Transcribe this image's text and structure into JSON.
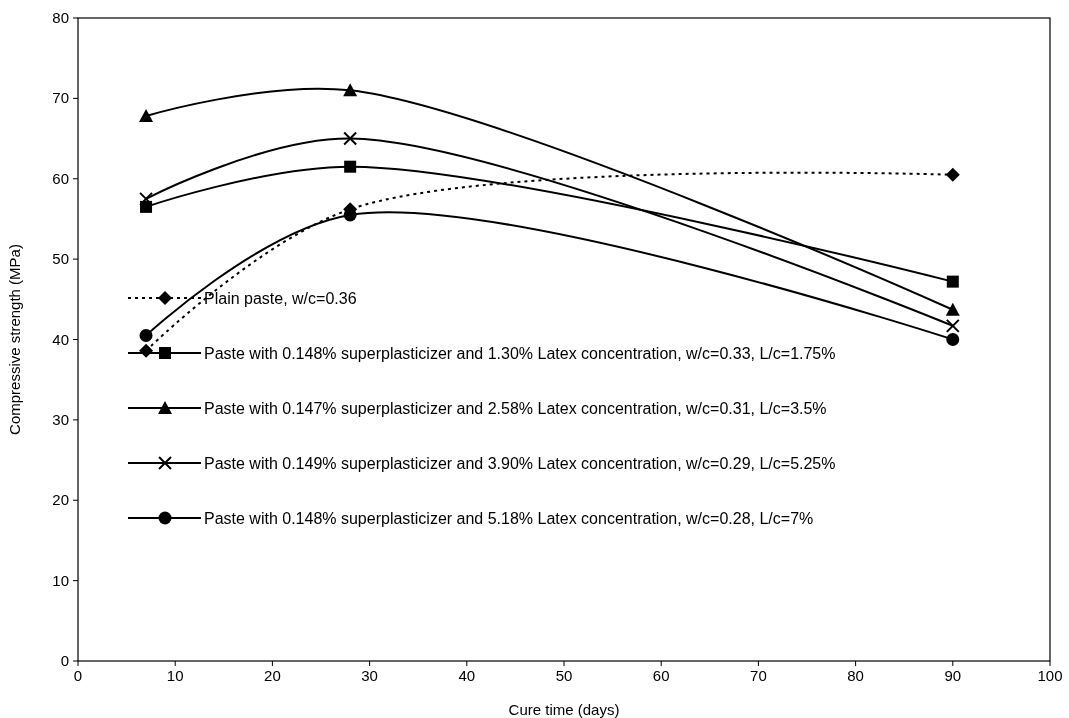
{
  "chart_data": {
    "type": "line",
    "xlabel": "Cure time (days)",
    "ylabel": "Compressive strength (MPa)",
    "x": [
      7,
      28,
      90
    ],
    "xlim": [
      0,
      100
    ],
    "xticks": [
      0,
      10,
      20,
      30,
      40,
      50,
      60,
      70,
      80,
      90,
      100
    ],
    "ylim": [
      0,
      80
    ],
    "yticks": [
      0,
      10,
      20,
      30,
      40,
      50,
      60,
      70,
      80
    ],
    "grid": false,
    "legend": "bottom left",
    "series": [
      {
        "name": "Plain paste, w/c=0.36",
        "color": "#000000",
        "values": [
          38.6,
          56.2,
          60.5
        ],
        "marker": "diamond",
        "line_style": "dotted"
      },
      {
        "name": "Paste with 0.148% superplasticizer and 1.30% Latex concentration, w/c=0.33, L/c=1.75%",
        "color": "#000000",
        "values": [
          56.5,
          61.5,
          47.2
        ],
        "marker": "square",
        "line_style": "solid"
      },
      {
        "name": "Paste with 0.147% superplasticizer and 2.58% Latex concentration, w/c=0.31, L/c=3.5%",
        "color": "#000000",
        "values": [
          67.8,
          71,
          43.7
        ],
        "marker": "triangle",
        "line_style": "solid"
      },
      {
        "name": "Paste with 0.149% superplasticizer and 3.90% Latex concentration, w/c=0.29, L/c=5.25%",
        "color": "#000000",
        "values": [
          57.5,
          65,
          41.7
        ],
        "marker": "cross",
        "line_style": "solid"
      },
      {
        "name": "Paste with 0.148% superplasticizer and 5.18% Latex concentration, w/c=0.28, L/c=7%",
        "color": "#000000",
        "values": [
          40.5,
          55.5,
          40
        ],
        "marker": "circle",
        "line_style": "solid"
      }
    ]
  }
}
